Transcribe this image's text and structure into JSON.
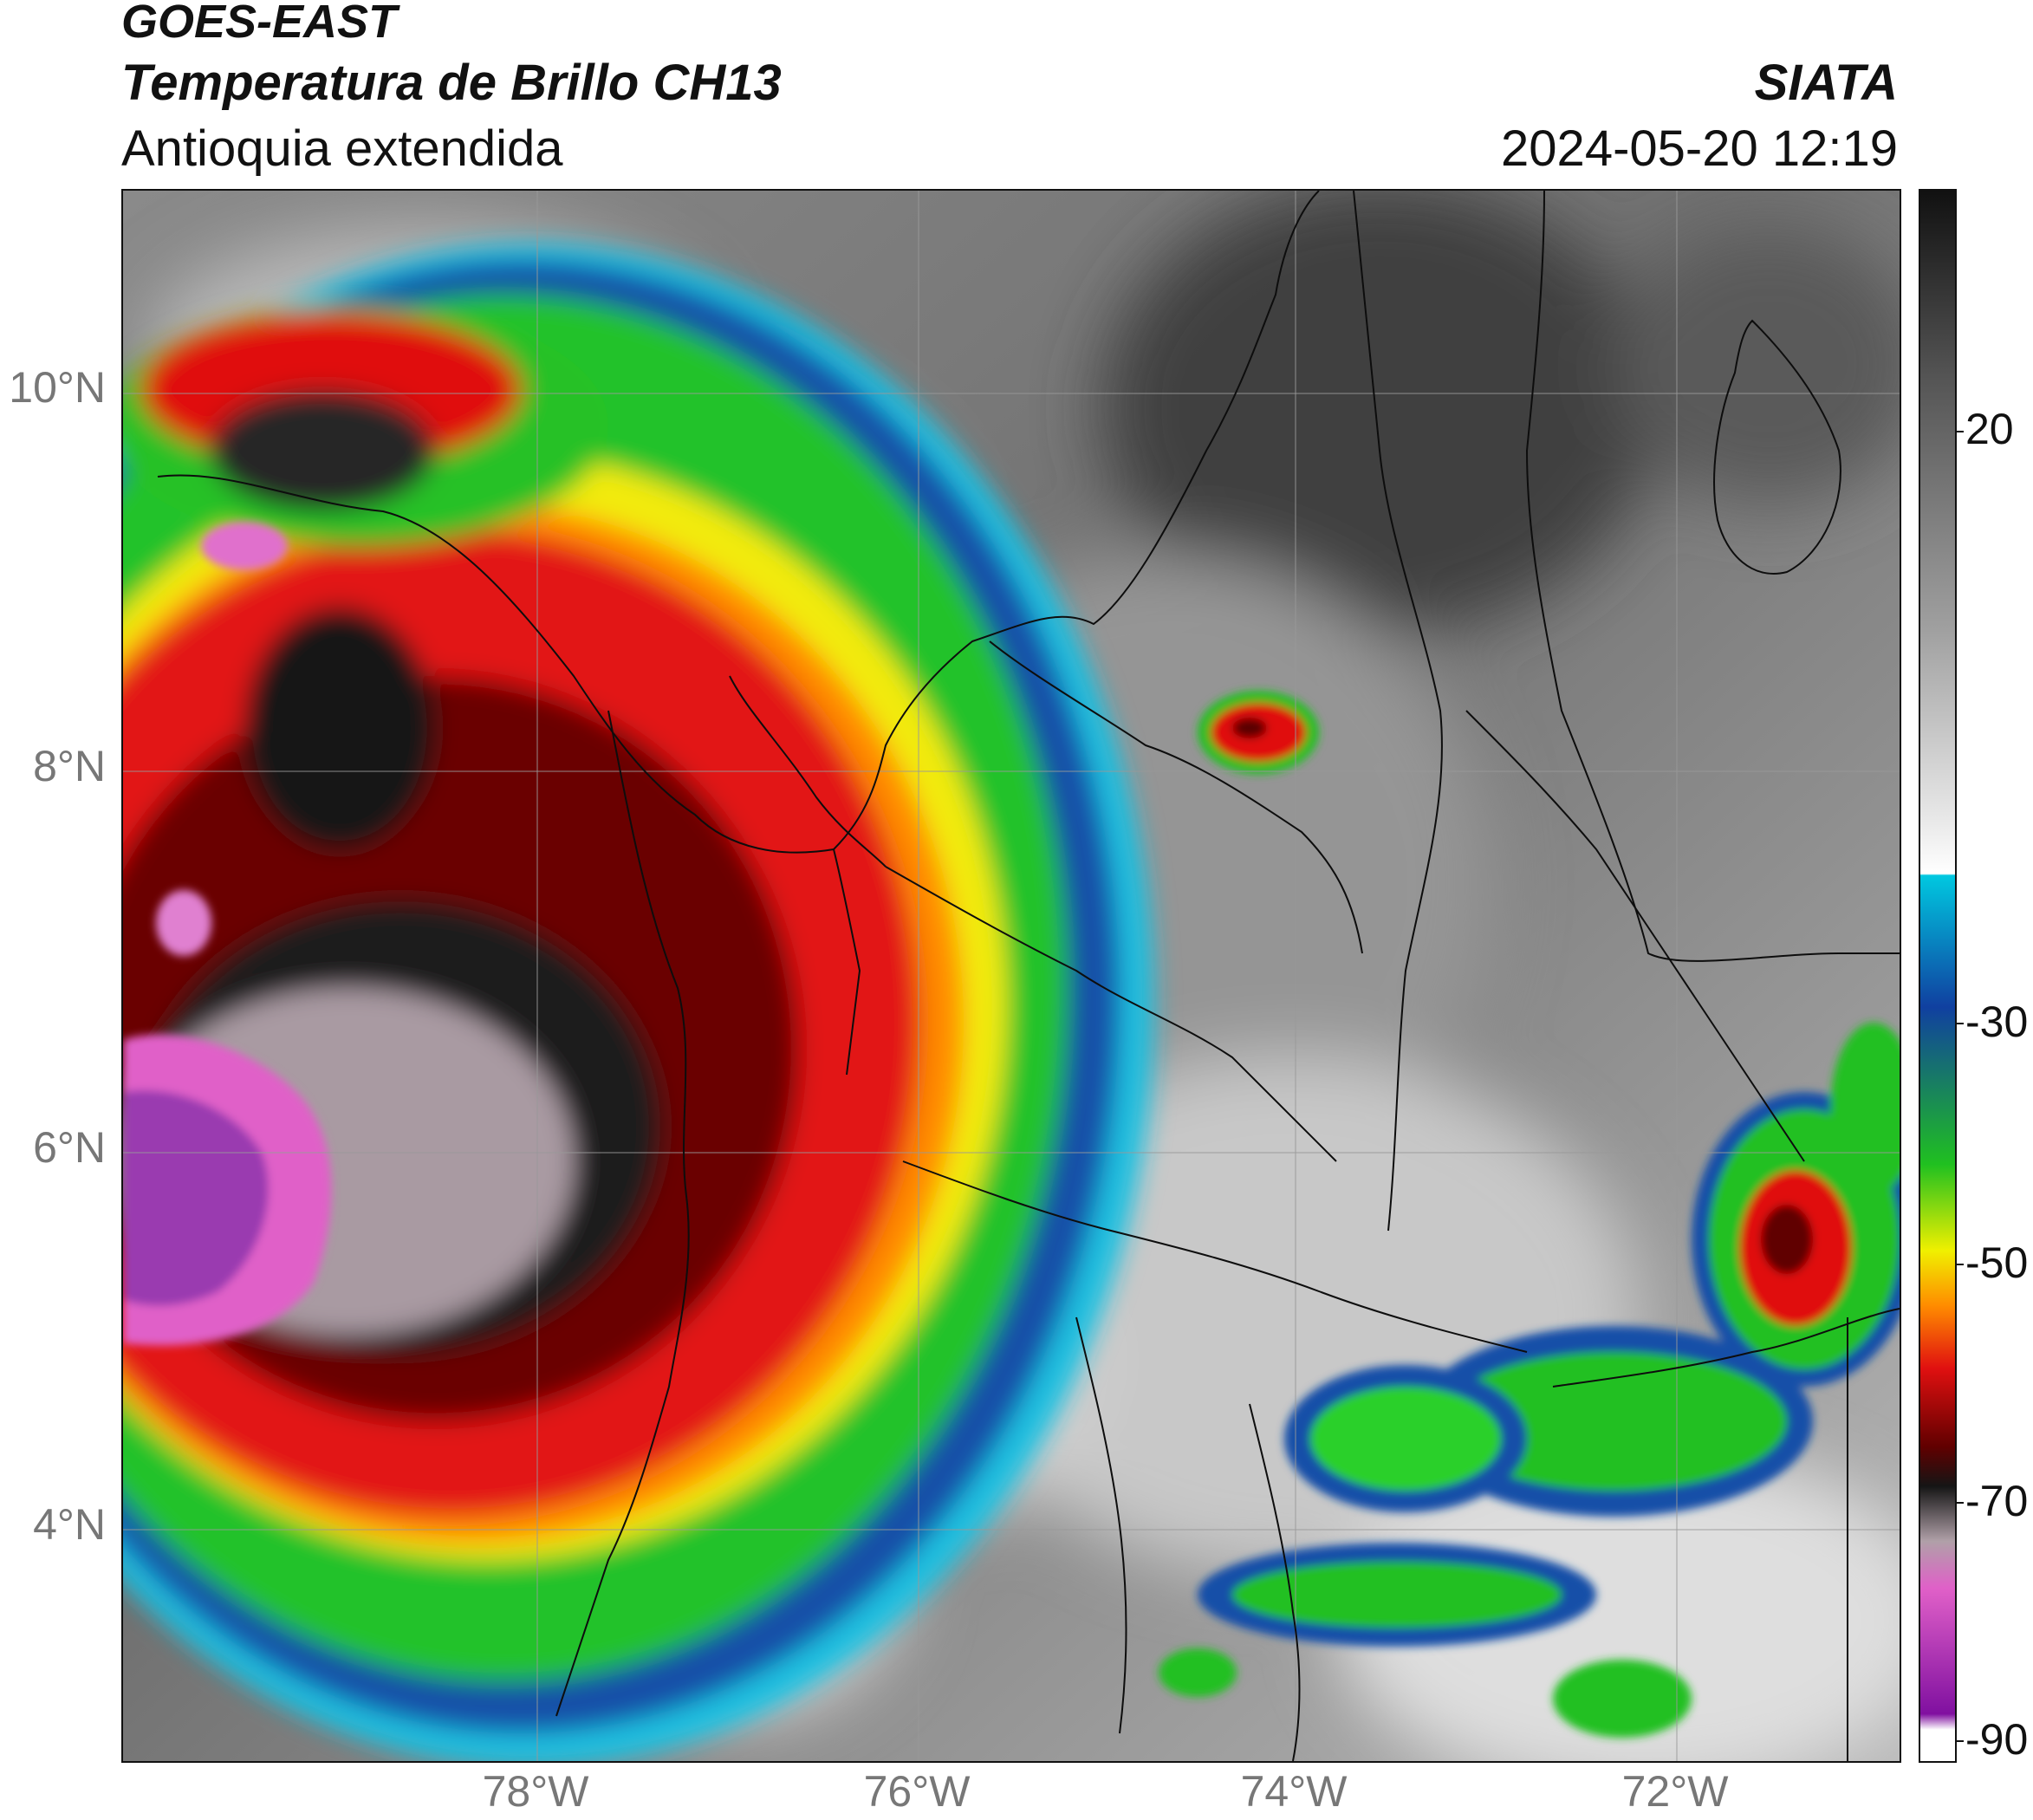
{
  "header": {
    "satellite": "GOES-EAST",
    "product": "Temperatura de Brillo CH13",
    "region": "Antioquia extendida",
    "agency": "SIATA",
    "datetime": "2024-05-20 12:19"
  },
  "map": {
    "latitude_labels": [
      "10°N",
      "8°N",
      "6°N",
      "4°N"
    ],
    "longitude_labels": [
      "78°W",
      "76°W",
      "74°W",
      "72°W"
    ],
    "extent": {
      "lon_min": -80.0,
      "lon_max": -70.6,
      "lat_min": 2.7,
      "lat_max": 11.1
    },
    "grid_lines": true
  },
  "colorbar": {
    "labels": [
      "20",
      "-30",
      "-50",
      "-70",
      "-90"
    ],
    "values": [
      20,
      -30,
      -50,
      -70,
      -90
    ],
    "range": [
      -92,
      33
    ],
    "colors": {
      "warm_black": "#111111",
      "warm_gray": "#555555",
      "neutral_gray": "#a0a0a0",
      "light_gray": "#e8e8e8",
      "cyan": "#00c8e0",
      "blue": "#1040a0",
      "green": "#20c020",
      "yellow": "#f0f000",
      "orange": "#ff8c00",
      "red": "#e01010",
      "dark_red": "#600000",
      "cold_black": "#151515",
      "cold_gray": "#b0a0a8",
      "pink": "#e060c8",
      "purple": "#8010a0"
    }
  }
}
